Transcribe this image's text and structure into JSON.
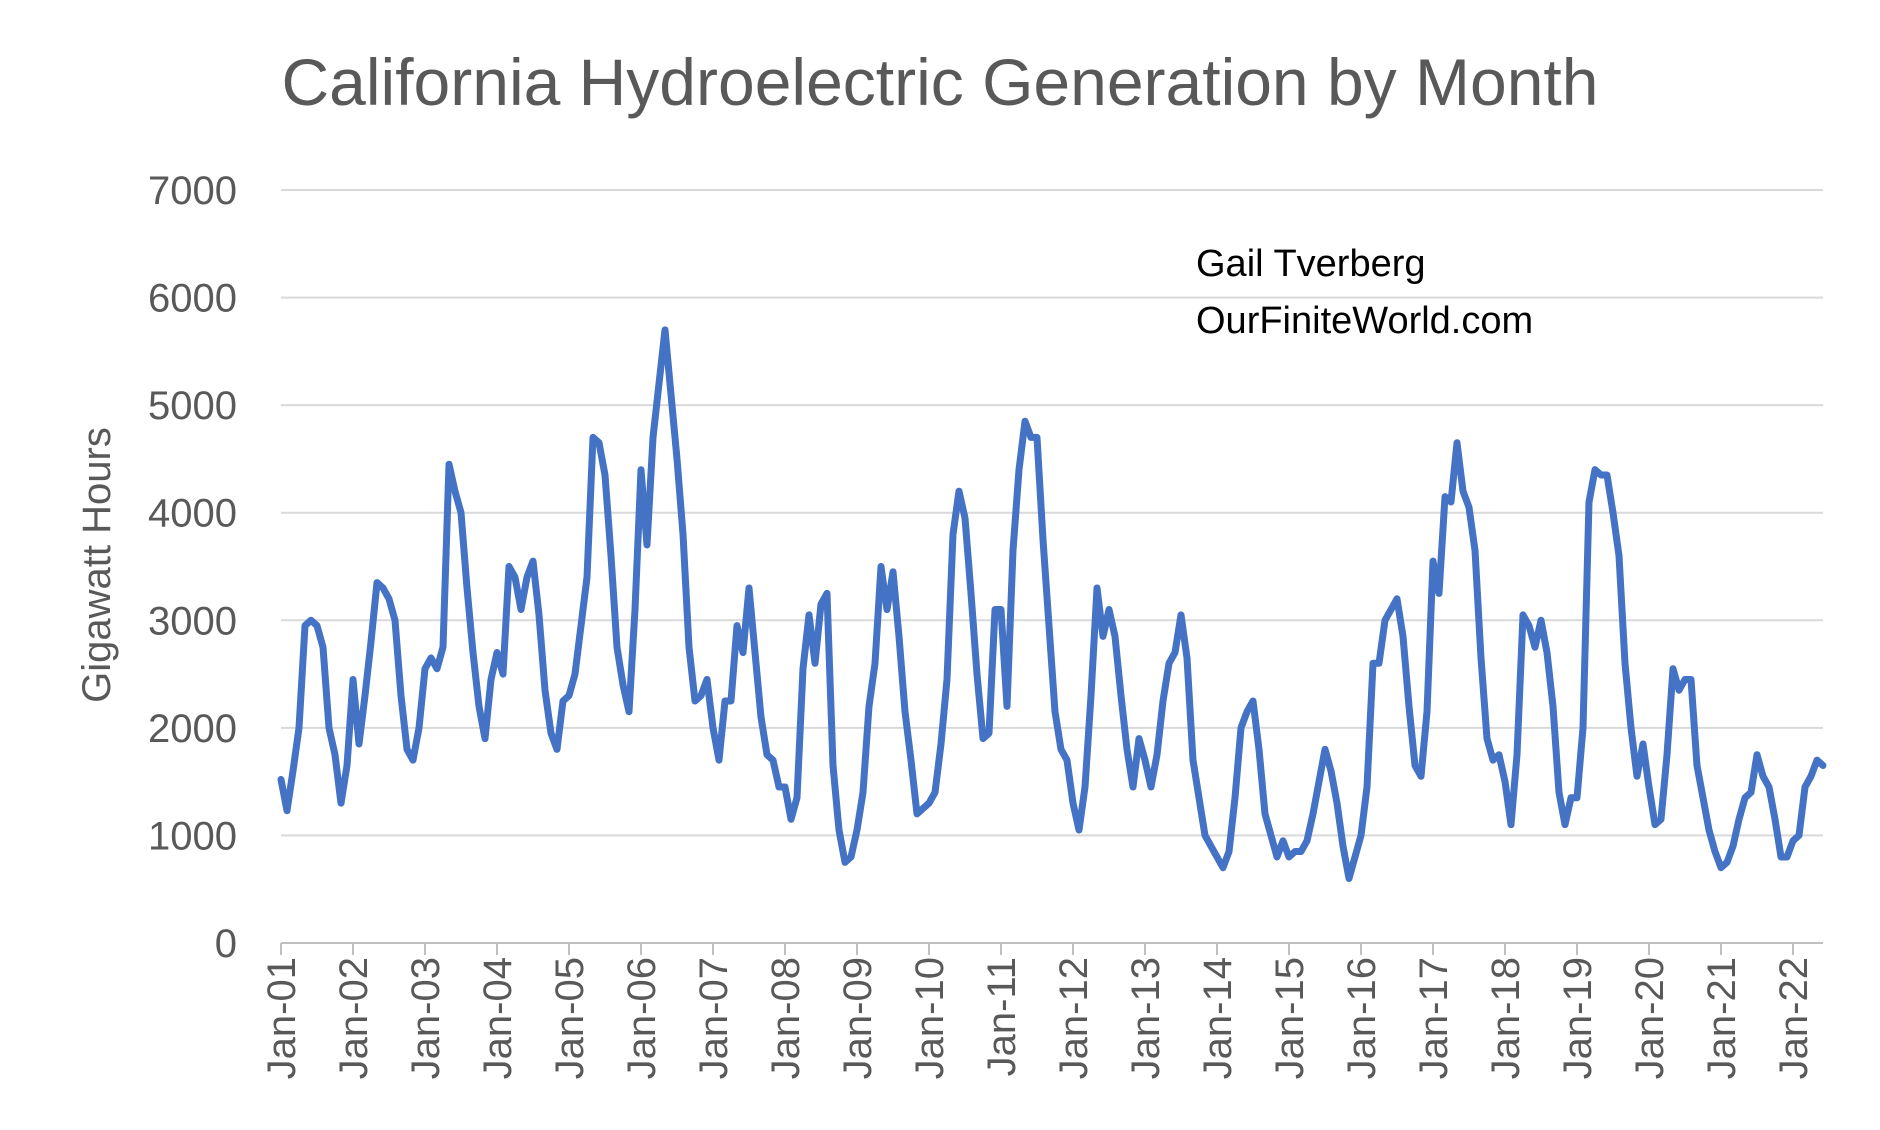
{
  "chart_data": {
    "type": "line",
    "title": "California Hydroelectric Generation by Month",
    "xlabel": "",
    "ylabel": "Gigawatt Hours",
    "ylim": [
      0,
      7000
    ],
    "yticks": [
      0,
      1000,
      2000,
      3000,
      4000,
      5000,
      6000,
      7000
    ],
    "xticks": [
      "Jan-01",
      "Jan-02",
      "Jan-03",
      "Jan-04",
      "Jan-05",
      "Jan-06",
      "Jan-07",
      "Jan-08",
      "Jan-09",
      "Jan-10",
      "Jan-11",
      "Jan-12",
      "Jan-13",
      "Jan-14",
      "Jan-15",
      "Jan-16",
      "Jan-17",
      "Jan-18",
      "Jan-19",
      "Jan-20",
      "Jan-21",
      "Jan-22"
    ],
    "grid": "horizontal",
    "legend": "none",
    "annotation": [
      "Gail Tverberg",
      "OurFiniteWorld.com"
    ],
    "colors": {
      "line": "#4472C4",
      "grid": "#D9D9D9",
      "text": "#595959"
    },
    "series": [
      {
        "values": [
          1520,
          1230,
          1600,
          2000,
          2950,
          3000,
          2950,
          2750,
          2000,
          1750,
          1300,
          1650,
          2450,
          1850,
          2300,
          2800,
          3350,
          3300,
          3200,
          3000,
          2300,
          1800,
          1700,
          2000,
          2550,
          2650,
          2550,
          2750,
          4450,
          4200,
          4000,
          3300,
          2700,
          2200,
          1900,
          2450,
          2700,
          2500,
          3500,
          3400,
          3100,
          3400,
          3550,
          3050,
          2350,
          1950,
          1800,
          2250,
          2300,
          2500,
          2950,
          3400,
          4700,
          4650,
          4350,
          3600,
          2750,
          2400,
          2150,
          3100,
          4400,
          3700,
          4700,
          5200,
          5700,
          5100,
          4500,
          3800,
          2750,
          2250,
          2300,
          2450,
          2000,
          1700,
          2250,
          2250,
          2950,
          2700,
          3300,
          2700,
          2100,
          1750,
          1700,
          1450,
          1450,
          1150,
          1350,
          2550,
          3050,
          2600,
          3150,
          3250,
          1650,
          1050,
          750,
          800,
          1050,
          1400,
          2200,
          2600,
          3500,
          3100,
          3450,
          2850,
          2150,
          1700,
          1200,
          1250,
          1300,
          1400,
          1850,
          2450,
          3800,
          4200,
          3950,
          3250,
          2500,
          1900,
          1950,
          3100,
          3100,
          2200,
          3650,
          4400,
          4850,
          4700,
          4700,
          3750,
          2950,
          2150,
          1800,
          1700,
          1300,
          1050,
          1450,
          2300,
          3300,
          2850,
          3100,
          2850,
          2300,
          1800,
          1450,
          1900,
          1700,
          1450,
          1750,
          2250,
          2600,
          2700,
          3050,
          2650,
          1700,
          1350,
          1000,
          900,
          800,
          700,
          850,
          1350,
          2000,
          2150,
          2250,
          1800,
          1200,
          1000,
          800,
          950,
          800,
          850,
          850,
          950,
          1200,
          1500,
          1800,
          1600,
          1300,
          900,
          600,
          800,
          1000,
          1450,
          2600,
          2600,
          3000,
          3100,
          3200,
          2850,
          2200,
          1650,
          1550,
          2150,
          3550,
          3250,
          4150,
          4100,
          4650,
          4200,
          4050,
          3650,
          2650,
          1900,
          1700,
          1750,
          1500,
          1100,
          1750,
          3050,
          2950,
          2750,
          3000,
          2700,
          2200,
          1400,
          1100,
          1350,
          1350,
          2000,
          4100,
          4400,
          4350,
          4350,
          4000,
          3600,
          2600,
          2000,
          1550,
          1850,
          1450,
          1100,
          1150,
          1750,
          2550,
          2350,
          2450,
          2450,
          1650,
          1350,
          1050,
          850,
          700,
          750,
          900,
          1150,
          1350,
          1400,
          1750,
          1550,
          1450,
          1150,
          800,
          800,
          950,
          1000,
          1450,
          1550,
          1700,
          1650
        ]
      }
    ]
  }
}
